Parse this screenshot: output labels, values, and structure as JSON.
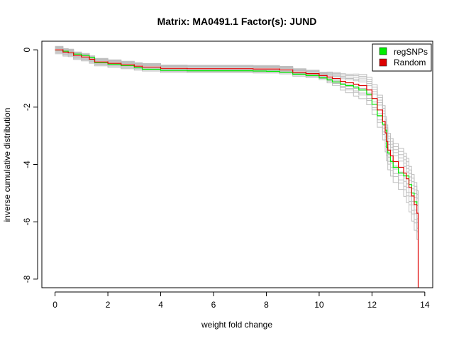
{
  "chart_data": {
    "type": "line",
    "title": "Matrix: MA0491.1 Factor(s): JUND",
    "xlabel": "weight fold change",
    "ylabel": "inverse cumulative distribution",
    "xlim": [
      -0.5,
      14.3
    ],
    "ylim": [
      -8.3,
      0.3
    ],
    "xticks": [
      0,
      2,
      4,
      6,
      8,
      10,
      12,
      14
    ],
    "yticks": [
      0,
      -2,
      -4,
      -6,
      -8
    ],
    "legend_position": "top-right",
    "grid": false,
    "legend": [
      {
        "label": "regSNPs",
        "color": "#00ee00"
      },
      {
        "label": "Random",
        "color": "#dd0000"
      }
    ],
    "series": [
      {
        "name": "regSNPs",
        "color": "#00ee00",
        "x": [
          0,
          0.2,
          0.3,
          0.5,
          0.7,
          1.0,
          1.3,
          1.5,
          2.0,
          2.5,
          3.0,
          3.3,
          4.0,
          5.0,
          6.0,
          7.0,
          7.5,
          8.0,
          8.5,
          9.0,
          9.5,
          10.0,
          10.3,
          10.5,
          10.8,
          11.0,
          11.3,
          11.5,
          11.8,
          12.0,
          12.2,
          12.4,
          12.5,
          12.55,
          12.6,
          12.7,
          12.8,
          13.0,
          13.2,
          13.3,
          13.4,
          13.5,
          13.6,
          13.7
        ],
        "y": [
          0,
          0,
          -0.05,
          -0.1,
          -0.15,
          -0.2,
          -0.27,
          -0.45,
          -0.5,
          -0.55,
          -0.62,
          -0.68,
          -0.72,
          -0.73,
          -0.73,
          -0.73,
          -0.74,
          -0.75,
          -0.78,
          -0.85,
          -0.9,
          -0.98,
          -1.05,
          -1.12,
          -1.2,
          -1.25,
          -1.3,
          -1.4,
          -1.55,
          -1.9,
          -2.3,
          -2.6,
          -2.8,
          -3.4,
          -3.6,
          -3.9,
          -4.1,
          -4.3,
          -4.4,
          -4.4,
          -4.7,
          -5.0,
          -5.3,
          -5.4
        ]
      },
      {
        "name": "Random",
        "color": "#dd0000",
        "x": [
          0,
          0.2,
          0.3,
          0.5,
          0.7,
          1.0,
          1.3,
          1.5,
          2.0,
          2.5,
          3.0,
          3.3,
          4.0,
          5.0,
          6.0,
          7.0,
          7.5,
          8.0,
          8.5,
          9.0,
          9.5,
          10.0,
          10.3,
          10.5,
          10.8,
          11.0,
          11.3,
          11.5,
          11.8,
          12.0,
          12.2,
          12.4,
          12.5,
          12.55,
          12.6,
          12.7,
          12.8,
          13.0,
          13.2,
          13.3,
          13.4,
          13.5,
          13.6,
          13.7,
          13.75,
          13.75
        ],
        "y": [
          0,
          0,
          -0.08,
          -0.1,
          -0.2,
          -0.25,
          -0.33,
          -0.42,
          -0.47,
          -0.52,
          -0.57,
          -0.6,
          -0.65,
          -0.66,
          -0.66,
          -0.66,
          -0.67,
          -0.67,
          -0.7,
          -0.78,
          -0.83,
          -0.9,
          -0.95,
          -1.0,
          -1.1,
          -1.15,
          -1.2,
          -1.25,
          -1.4,
          -1.7,
          -2.1,
          -2.5,
          -2.9,
          -3.2,
          -3.5,
          -3.7,
          -3.9,
          -4.1,
          -4.3,
          -4.5,
          -4.8,
          -5.1,
          -5.4,
          -5.7,
          -7.5,
          -8.3
        ]
      }
    ]
  }
}
